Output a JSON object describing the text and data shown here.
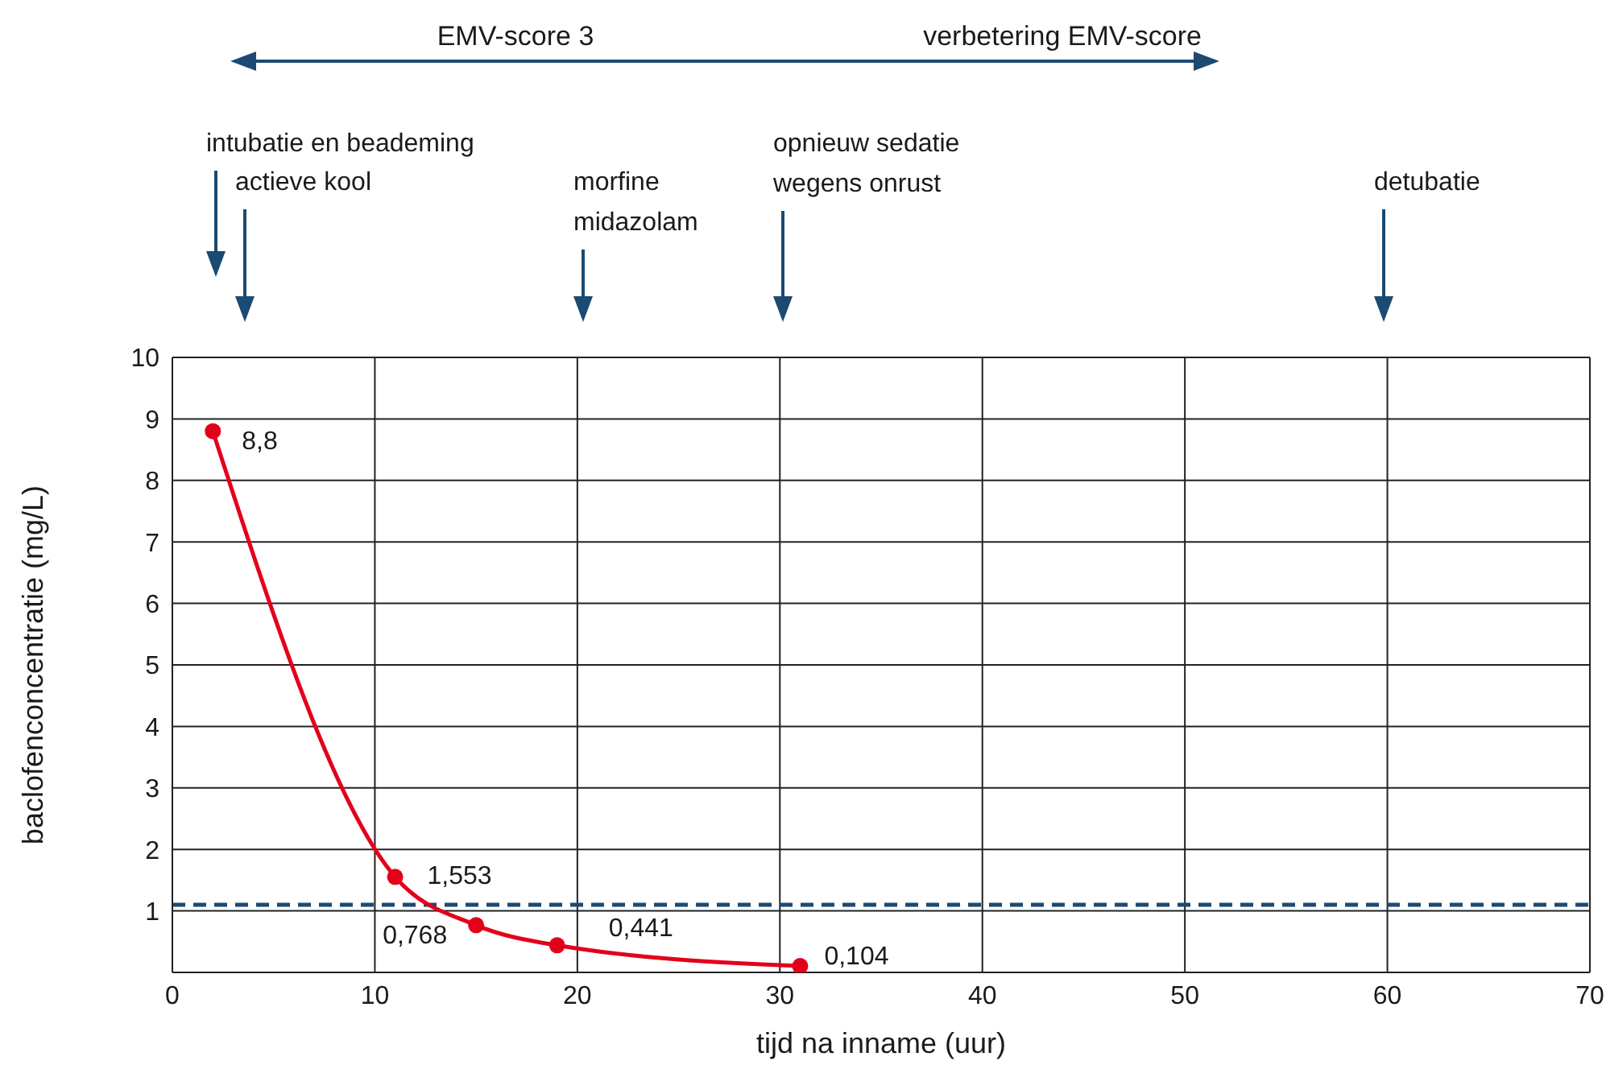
{
  "chart_data": {
    "type": "line",
    "xlabel": "tijd na inname (uur)",
    "ylabel": "baclofenconcentratie (mg/L)",
    "x": [
      2,
      11,
      15,
      19,
      31
    ],
    "series": [
      {
        "color": "#e3001b",
        "values": [
          8.8,
          1.553,
          0.768,
          0.441,
          0.104
        ],
        "value_labels": [
          "8,8",
          "1,553",
          "0,768",
          "0,441",
          "0,104"
        ]
      }
    ],
    "xlim": [
      0,
      70
    ],
    "xticks": [
      0,
      10,
      20,
      30,
      40,
      50,
      60,
      70
    ],
    "ylim": [
      0,
      10
    ],
    "yticks": [
      {
        "value": 0,
        "label": null
      },
      1,
      2,
      3,
      4,
      5,
      6,
      7,
      8,
      9,
      10
    ],
    "grid": true,
    "marker": "circle",
    "line_style": "solid",
    "ref_lines": [
      {
        "axis": "y",
        "value": 1.1,
        "color": "#1b4a72",
        "line_style": "dashed"
      }
    ],
    "annotations": [
      "EMV-score 3",
      "verbetering EMV-score",
      "intubatie en beademing",
      "actieve kool",
      "morfine\nmidazolam",
      "opnieuw sedatie\nwegens onrust",
      "detubatie"
    ]
  }
}
